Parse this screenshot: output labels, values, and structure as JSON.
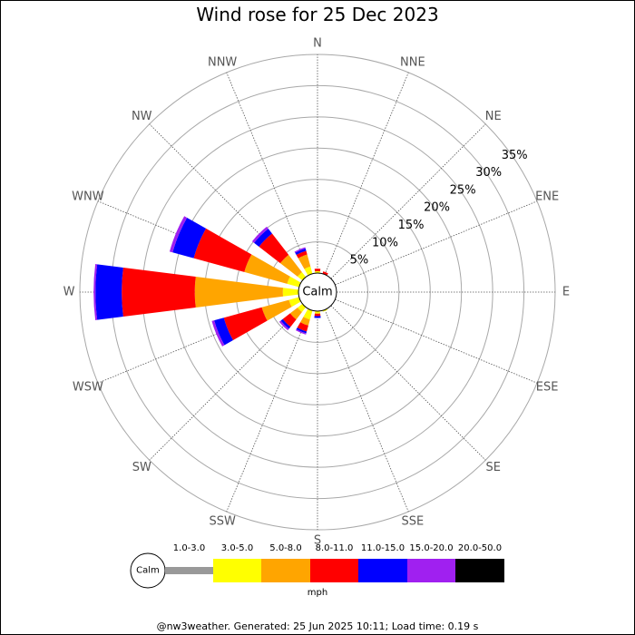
{
  "title": "Wind rose for 25 Dec 2023",
  "footer": "@nw3weather. Generated: 25 Jun 2025 10:11; Load time: 0.19 s",
  "calm_label": "Calm",
  "legend_unit": "mph",
  "chart_data": {
    "type": "wind-rose",
    "directions": [
      "N",
      "NNE",
      "NE",
      "ENE",
      "E",
      "ESE",
      "SE",
      "SSE",
      "S",
      "SSW",
      "SW",
      "WSW",
      "W",
      "WNW",
      "NW",
      "NNW"
    ],
    "ring_labels": [
      "5%",
      "10%",
      "15%",
      "20%",
      "25%",
      "30%",
      "35%"
    ],
    "ring_values": [
      5,
      10,
      15,
      20,
      25,
      30,
      35
    ],
    "speed_bins": [
      "1.0-3.0",
      "3.0-5.0",
      "5.0-8.0",
      "8.0-11.0",
      "11.0-15.0",
      "15.0-20.0",
      "20.0-50.0"
    ],
    "bin_colors": [
      "#999999",
      "#ffff00",
      "#ffa500",
      "#ff0000",
      "#0000ff",
      "#a020f0",
      "#000000"
    ],
    "percent_by_direction": {
      "N": [
        0.0,
        0.3,
        0.0,
        0.4,
        0.0,
        0.0,
        0.0
      ],
      "NNE": [
        0.0,
        0.0,
        0.0,
        0.4,
        0.0,
        0.0,
        0.0
      ],
      "NE": [
        0,
        0,
        0,
        0,
        0,
        0,
        0
      ],
      "ENE": [
        0,
        0,
        0,
        0,
        0,
        0,
        0
      ],
      "E": [
        0,
        0,
        0,
        0,
        0,
        0,
        0
      ],
      "ESE": [
        0,
        0,
        0,
        0,
        0,
        0,
        0
      ],
      "SE": [
        0,
        0,
        0,
        0,
        0,
        0,
        0
      ],
      "SSE": [
        0.0,
        0.2,
        0.0,
        0.0,
        0.0,
        0.0,
        0.0
      ],
      "S": [
        0.0,
        0.4,
        0.0,
        0.4,
        0.3,
        0.0,
        0.0
      ],
      "SSW": [
        0.0,
        1.5,
        1.0,
        1.0,
        0.3,
        0.2,
        0.0
      ],
      "SW": [
        0.0,
        1.0,
        1.5,
        1.5,
        0.4,
        0.3,
        0.0
      ],
      "WSW": [
        0.0,
        1.7,
        4.5,
        6.3,
        1.6,
        0.4,
        0.0
      ],
      "W": [
        0.0,
        2.5,
        14.1,
        11.7,
        4.2,
        0.3,
        0.0
      ],
      "WNW": [
        0.0,
        2.0,
        7.1,
        8.4,
        3.5,
        0.5,
        0.0
      ],
      "NW": [
        0.0,
        1.0,
        3.5,
        4.3,
        1.0,
        0.4,
        0.0
      ],
      "NNW": [
        0.0,
        1.2,
        2.0,
        0.6,
        0.4,
        0.2,
        0.0
      ]
    },
    "ring_max": 35,
    "grid": true
  }
}
